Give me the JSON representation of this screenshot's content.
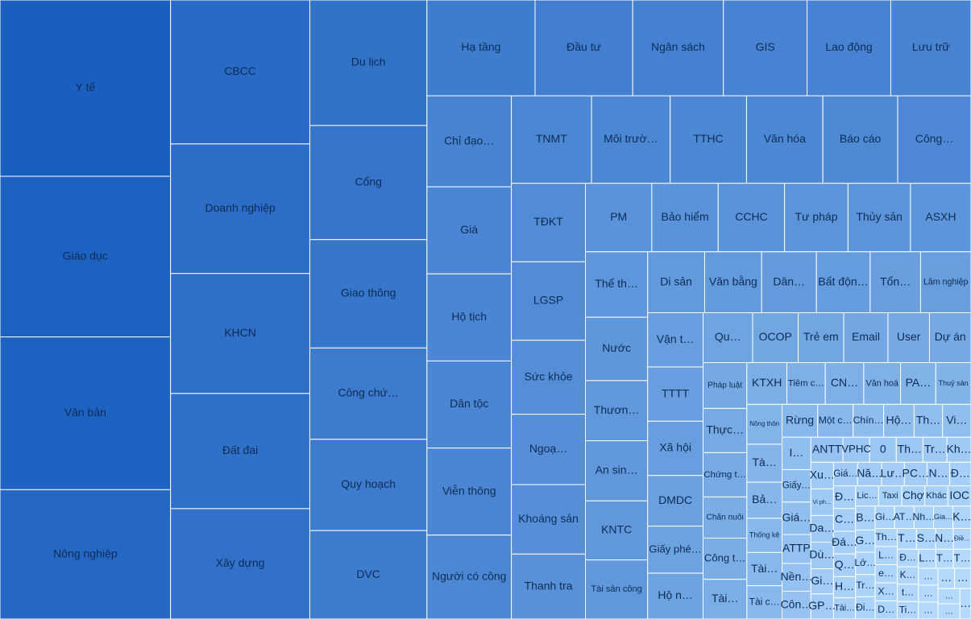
{
  "chart_data": {
    "type": "treemap",
    "categories": [
      "Y tế",
      "Giáo dục",
      "Văn bản",
      "Nông nghiệp",
      "CBCC",
      "Doanh nghiệp",
      "KHCN",
      "Đất đai",
      "Xây dựng",
      "Du lịch",
      "Cổng",
      "Giao thông",
      "Công chứ…",
      "Quy hoạch",
      "DVC",
      "Hạ tầng",
      "Đầu tư",
      "Ngân sách",
      "GIS",
      "Lao động",
      "Lưu trữ",
      "Chỉ đạo…",
      "Giá",
      "Hộ tịch",
      "Dân tộc",
      "Viễn thông",
      "Người có công",
      "TNMT",
      "Môi trườ…",
      "TTHC",
      "Văn hóa",
      "Báo cáo",
      "Công…",
      "TĐKT",
      "LGSP",
      "Sức khỏe",
      "Ngoạ…",
      "Khoáng sản",
      "Thanh tra",
      "PM",
      "Bảo hiểm",
      "CCHC",
      "Tư pháp",
      "Thủy sản",
      "ASXH",
      "Thể th…",
      "Nước",
      "Thươn…",
      "An sin…",
      "KNTC",
      "Tài sản công",
      "Di sản",
      "Văn bằng",
      "Dân…",
      "Bất độn…",
      "Tổn…",
      "Lâm nghiệp",
      "Vận t…",
      "TTTT",
      "Xã hội",
      "DMDC",
      "Giấy phé…",
      "Hộ n…",
      "Qu…",
      "OCOP",
      "Trẻ em",
      "Email",
      "User",
      "Dự án",
      "Pháp luật",
      "Thực…",
      "Chứng t…",
      "Chăn nuôi",
      "Công t…",
      "Tài…",
      "KTXH",
      "Tiêm c…",
      "CN…",
      "Văn hoá",
      "PA…",
      "Thuỷ sản",
      "Nông thôn",
      "Tà…",
      "Bả…",
      "Thống kê",
      "Tài…",
      "Tài c…",
      "Rừng",
      "Một c…",
      "Chín…",
      "Hộ…",
      "Th…",
      "Vi…",
      "I…",
      "Giấy…",
      "Giá…",
      "ATTP",
      "Nền…",
      "Côn…",
      "ANTT",
      "VPHC",
      "0",
      "Th…",
      "Tr…",
      "Kh…",
      "Xu…",
      "Vi ph…",
      "Da…",
      "Dù…",
      "Gi…",
      "GP…",
      "Giá…",
      "Nă…",
      "Lư…",
      "PC…",
      "N…",
      "Đ…",
      "Đ…",
      "C…",
      "Đá…",
      "Q…",
      "H…",
      "Tài…",
      "Lic…",
      "Taxi",
      "Chợ",
      "Khác",
      "IOC",
      "B…",
      "G…",
      "Lớ…",
      "Tr…",
      "Đi…",
      "Gi…",
      "AT…",
      "Nh…",
      "Gia…",
      "K…",
      "Th…",
      "L…",
      "e…",
      "X…",
      "D…",
      "T…",
      "S…",
      "N…",
      "Điề…",
      "Đ…",
      "K…",
      "t…",
      "Ti…",
      "L…",
      "T…",
      "T…",
      "…",
      "…",
      "…",
      "…",
      "…",
      "…",
      "…",
      "…"
    ],
    "values": [
      45,
      41,
      39,
      33,
      30,
      27,
      25,
      24,
      23,
      22,
      20,
      19,
      16,
      16,
      15.5,
      15.5,
      14,
      13,
      12,
      12,
      11.5,
      11.5,
      11,
      11,
      11,
      11,
      10.6,
      10.5,
      10.3,
      10,
      10,
      9.8,
      9.6,
      8.7,
      8.7,
      8.2,
      7.8,
      7.7,
      7.2,
      6.8,
      6.8,
      6.8,
      6.5,
      6.4,
      6.2,
      6.1,
      5.9,
      5.6,
      5.6,
      5.5,
      5.5,
      5.2,
      5.2,
      5,
      4.9,
      4.6,
      4.6,
      4.5,
      4.5,
      4.5,
      4.2,
      3.9,
      3.8,
      3.7,
      3.4,
      3.4,
      3.3,
      3.1,
      3.1,
      3,
      2.9,
      2.9,
      2.7,
      2.7,
      2.6,
      2.5,
      2.4,
      2.4,
      2.3,
      2.2,
      2.2,
      2.1,
      2,
      1.9,
      1.8,
      1.75,
      1.75,
      1.75,
      1.75,
      1.5,
      1.5,
      1.4,
      1.4,
      1.4,
      1.4,
      1.4,
      1.25,
      1.2,
      1.2,
      1.2,
      1,
      1,
      1,
      0.9,
      0.9,
      0.9,
      0.9,
      0.9,
      0.9,
      0.85,
      0.85,
      0.85,
      0.85,
      0.8,
      0.8,
      0.8,
      0.75,
      0.75,
      0.75,
      0.75,
      0.75,
      0.7,
      0.7,
      0.7,
      0.7,
      0.7,
      0.7,
      0.7,
      0.7,
      0.65,
      0.65,
      0.65,
      0.65,
      0.65,
      0.65,
      0.65,
      0.65,
      0.6,
      0.6,
      0.6,
      0.6,
      0.6,
      0.6,
      0.6,
      0.6,
      0.55,
      0.55,
      0.55,
      0.55,
      0.55,
      0.55,
      0.5,
      0.5,
      0.5,
      0.5,
      0.5,
      0.5,
      0.5,
      0.5,
      0.5,
      0.5,
      0.5
    ],
    "color_range": [
      "#b3dafc",
      "#1a5fc0"
    ]
  }
}
